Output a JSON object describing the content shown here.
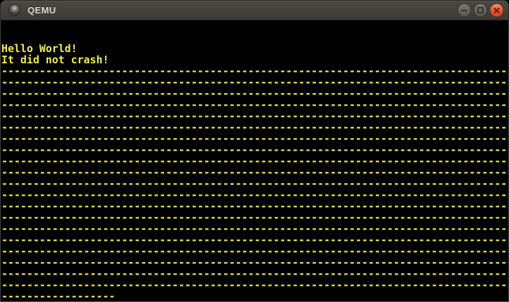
{
  "window": {
    "title": "QEMU",
    "icon": "qemu-window-icon",
    "controls": [
      {
        "name": "minimize",
        "icon": "minimize-icon"
      },
      {
        "name": "maximize",
        "icon": "maximize-icon"
      },
      {
        "name": "close",
        "icon": "close-icon"
      }
    ]
  },
  "colors": {
    "vga_text": "#F0EC5F",
    "screen_bg": "#000000",
    "titlebar_bg": "#413F3A",
    "close_button": "#E35A2E"
  },
  "screen": {
    "cols": 80,
    "rows": 25,
    "lines": [
      "",
      "",
      "Hello World!",
      "It did not crash!",
      "--------------------------------------------------------------------------------",
      "--------------------------------------------------------------------------------",
      "--------------------------------------------------------------------------------",
      "--------------------------------------------------------------------------------",
      "--------------------------------------------------------------------------------",
      "--------------------------------------------------------------------------------",
      "--------------------------------------------------------------------------------",
      "--------------------------------------------------------------------------------",
      "--------------------------------------------------------------------------------",
      "--------------------------------------------------------------------------------",
      "--------------------------------------------------------------------------------",
      "--------------------------------------------------------------------------------",
      "--------------------------------------------------------------------------------",
      "--------------------------------------------------------------------------------",
      "--------------------------------------------------------------------------------",
      "--------------------------------------------------------------------------------",
      "--------------------------------------------------------------------------------",
      "--------------------------------------------------------------------------------",
      "--------------------------------------------------------------------------------",
      "--------------------------------------------------------------------------------",
      "------------------"
    ]
  }
}
